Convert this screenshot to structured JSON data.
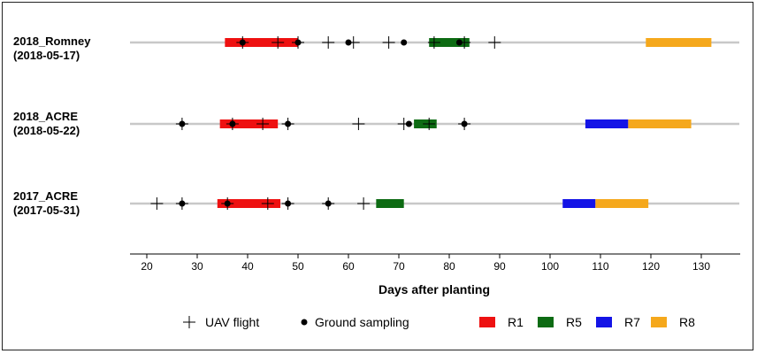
{
  "chart_data": {
    "type": "timeline",
    "xlabel": "Days after planting",
    "xlim": [
      17,
      137
    ],
    "xticks": [
      20,
      30,
      40,
      50,
      60,
      70,
      80,
      90,
      100,
      110,
      120,
      130
    ],
    "tick_labels": [
      "20",
      "30",
      "40",
      "50",
      "60",
      "70",
      "80",
      "90",
      "100",
      "110",
      "120",
      "130"
    ],
    "stage_colors": {
      "R1": "#ee1111",
      "R5": "#0d6b13",
      "R7": "#1414e6",
      "R8": "#f5a81c"
    },
    "sites": [
      {
        "name": "2018_Romney",
        "date": "(2018-05-17)",
        "uav_flights": [
          39,
          46,
          50,
          56,
          61,
          68,
          77,
          83,
          89
        ],
        "ground_sampling": [
          39,
          50,
          60,
          71,
          82
        ],
        "stages": [
          {
            "stage": "R1",
            "start": 35.5,
            "end": 50
          },
          {
            "stage": "R5",
            "start": 76,
            "end": 84
          },
          {
            "stage": "R8",
            "start": 119,
            "end": 132
          }
        ]
      },
      {
        "name": "2018_ACRE",
        "date": "(2018-05-22)",
        "uav_flights": [
          27,
          37,
          43,
          48,
          62,
          71,
          76,
          83
        ],
        "ground_sampling": [
          27,
          37,
          48,
          72,
          83
        ],
        "stages": [
          {
            "stage": "R1",
            "start": 34.5,
            "end": 46
          },
          {
            "stage": "R5",
            "start": 73,
            "end": 77.5
          },
          {
            "stage": "R7",
            "start": 107,
            "end": 115.5
          },
          {
            "stage": "R8",
            "start": 115.5,
            "end": 128
          }
        ]
      },
      {
        "name": "2017_ACRE",
        "date": "(2017-05-31)",
        "uav_flights": [
          22,
          27,
          36,
          44,
          48,
          56,
          63
        ],
        "ground_sampling": [
          27,
          36,
          48,
          56
        ],
        "stages": [
          {
            "stage": "R1",
            "start": 34,
            "end": 46.5
          },
          {
            "stage": "R5",
            "start": 65.5,
            "end": 71
          },
          {
            "stage": "R7",
            "start": 102.5,
            "end": 109
          },
          {
            "stage": "R8",
            "start": 109,
            "end": 119.5
          }
        ]
      }
    ],
    "legend": {
      "uav_flight": "UAV flight",
      "ground_sampling": "Ground sampling",
      "stages": [
        "R1",
        "R5",
        "R7",
        "R8"
      ]
    }
  }
}
